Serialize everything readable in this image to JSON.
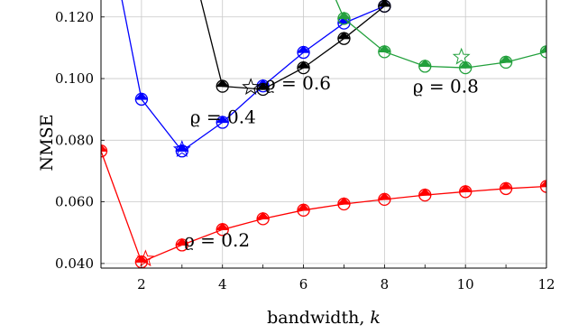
{
  "chart_data": {
    "type": "line",
    "xlabel": "bandwidth, k",
    "ylabel": "NMSE",
    "xlim": [
      1,
      12
    ],
    "ylim": [
      0.0385,
      0.1255
    ],
    "x_ticks": [
      2,
      4,
      6,
      8,
      10,
      12
    ],
    "y_ticks": [
      0.04,
      0.06,
      0.08,
      0.1,
      0.12
    ],
    "y_tick_labels": [
      "0.040",
      "0.060",
      "0.080",
      "0.100",
      "0.120"
    ],
    "grid": true,
    "series": [
      {
        "color": "#ff0000",
        "x": [
          1,
          2,
          3,
          4,
          5,
          6,
          7,
          8,
          9,
          10,
          11,
          12
        ],
        "y": [
          0.0765,
          0.0405,
          0.046,
          0.051,
          0.0545,
          0.0573,
          0.0593,
          0.0608,
          0.0622,
          0.0633,
          0.0643,
          0.065
        ],
        "star": {
          "x": 2.1,
          "y": 0.0415
        }
      },
      {
        "color": "#0000ff",
        "x": [
          1,
          2,
          3,
          4,
          5,
          6,
          7,
          8
        ],
        "y": [
          0.16,
          0.0933,
          0.0765,
          0.0858,
          0.0976,
          0.1085,
          0.118,
          0.1235
        ],
        "star": {
          "x": 3.0,
          "y": 0.077
        }
      },
      {
        "color": "#000000",
        "x": [
          3,
          4,
          5,
          6,
          7,
          8
        ],
        "y": [
          0.15,
          0.0975,
          0.0965,
          0.1035,
          0.113,
          0.1235
        ],
        "star": {
          "x": 4.7,
          "y": 0.0972
        }
      },
      {
        "color": "#22a03c",
        "x": [
          6,
          7,
          8,
          9,
          10,
          11,
          12
        ],
        "y": [
          0.15,
          0.1195,
          0.1087,
          0.104,
          0.1035,
          0.1053,
          0.1087
        ],
        "star": {
          "x": 9.9,
          "y": 0.107
        }
      }
    ],
    "annotations": [
      {
        "text": "ϱ = 0.2",
        "x": 3.05,
        "y": 0.0455
      },
      {
        "text": "ϱ = 0.4",
        "x": 3.2,
        "y": 0.0855
      },
      {
        "text": "ϱ = 0.6",
        "x": 5.05,
        "y": 0.0965
      },
      {
        "text": "ϱ = 0.8",
        "x": 8.7,
        "y": 0.0955
      }
    ]
  }
}
